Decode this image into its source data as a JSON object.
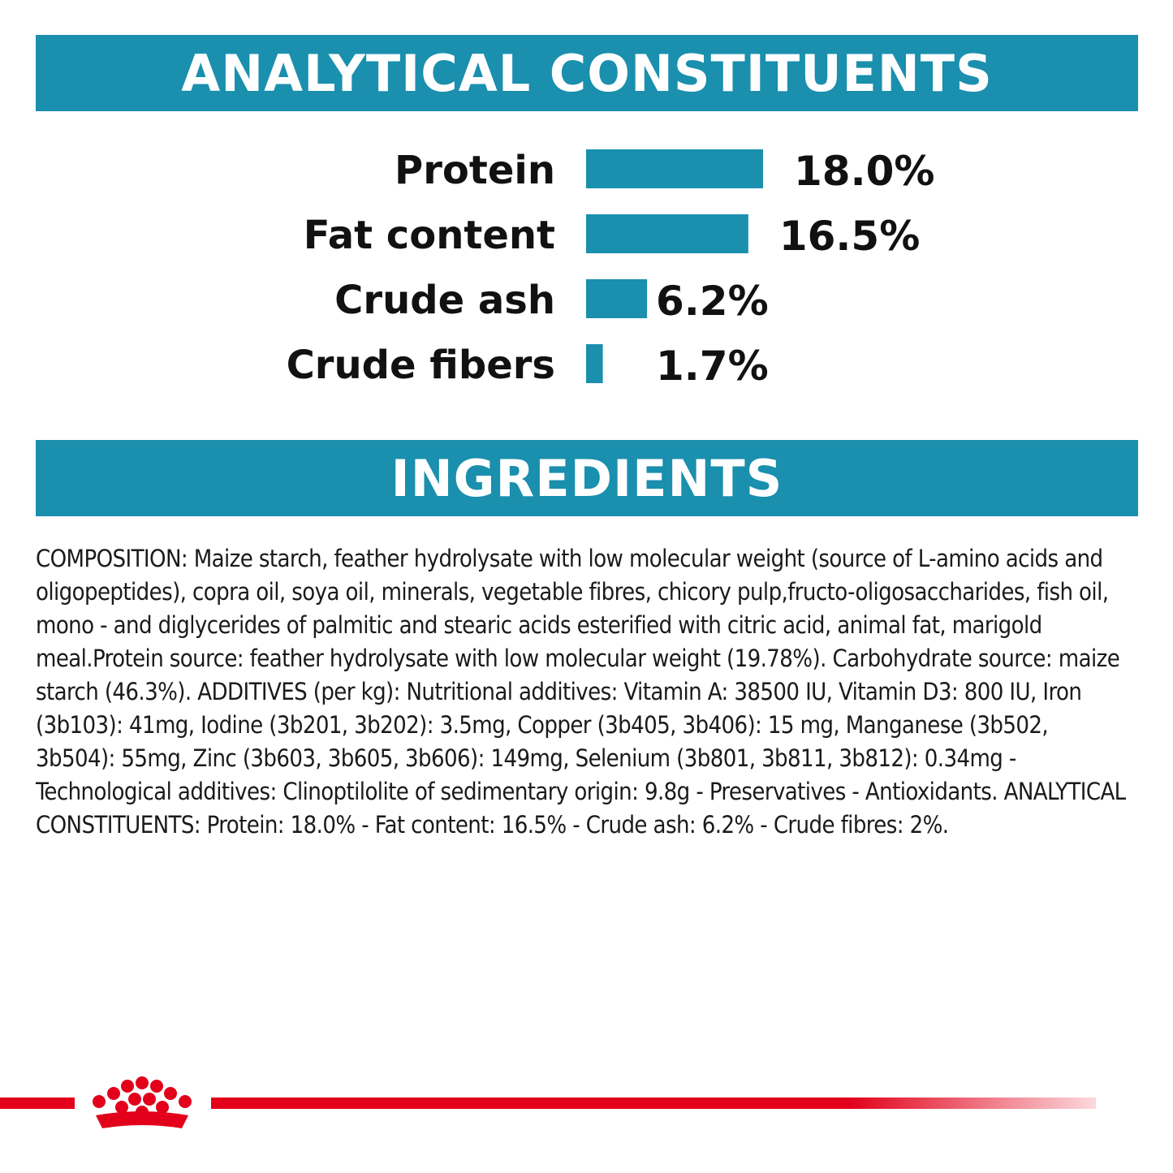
{
  "header": {
    "title": "ANALYTICAL CONSTITUENTS"
  },
  "ingredients": {
    "title": "INGREDIENTS",
    "composition": "COMPOSITION: Maize starch, feather hydrolysate with low molecular weight (source of L-amino acids and oligopeptides), copra oil, soya oil, minerals, vegetable fibres, chicory pulp,fructo-oligosaccharides, fish oil, mono - and diglycerides of palmitic and stearic acids esterified with citric acid, animal fat, marigold meal.Protein source: feather hydrolysate with low molecular weight (19.78%). Carbohydrate source: maize starch (46.3%). ADDITIVES (per kg): Nutritional additives: Vitamin A: 38500 IU, Vitamin D3: 800 IU, Iron (3b103): 41mg, Iodine (3b201, 3b202): 3.5mg, Copper (3b405, 3b406): 15 mg, Manganese (3b502, 3b504): 55mg, Zinc (3b603, 3b605, 3b606): 149mg, Selenium (3b801, 3b811, 3b812): 0.34mg - Technological additives: Clinoptilolite of sedimentary origin: 9.8g - Preservatives - Antioxidants. ANALYTICAL CONSTITUENTS: Protein: 18.0% - Fat content: 16.5% - Crude ash: 6.2% - Crude fibres: 2%."
  },
  "colors": {
    "accent": "#1a8fae",
    "brand": "#e2001a"
  },
  "logo": {
    "icon": "crown-icon"
  },
  "chart_data": {
    "type": "bar",
    "orientation": "horizontal",
    "categories": [
      "Protein",
      "Fat content",
      "Crude ash",
      "Crude fibers"
    ],
    "values": [
      18.0,
      16.5,
      6.2,
      1.7
    ],
    "value_labels": [
      "18.0%",
      "16.5%",
      "6.2%",
      "1.7%"
    ],
    "title": "ANALYTICAL CONSTITUENTS",
    "xlabel": "",
    "ylabel": "",
    "xlim": [
      0,
      18.0
    ],
    "grid": false,
    "legend": "none",
    "bar_color": "#1a8fae"
  }
}
